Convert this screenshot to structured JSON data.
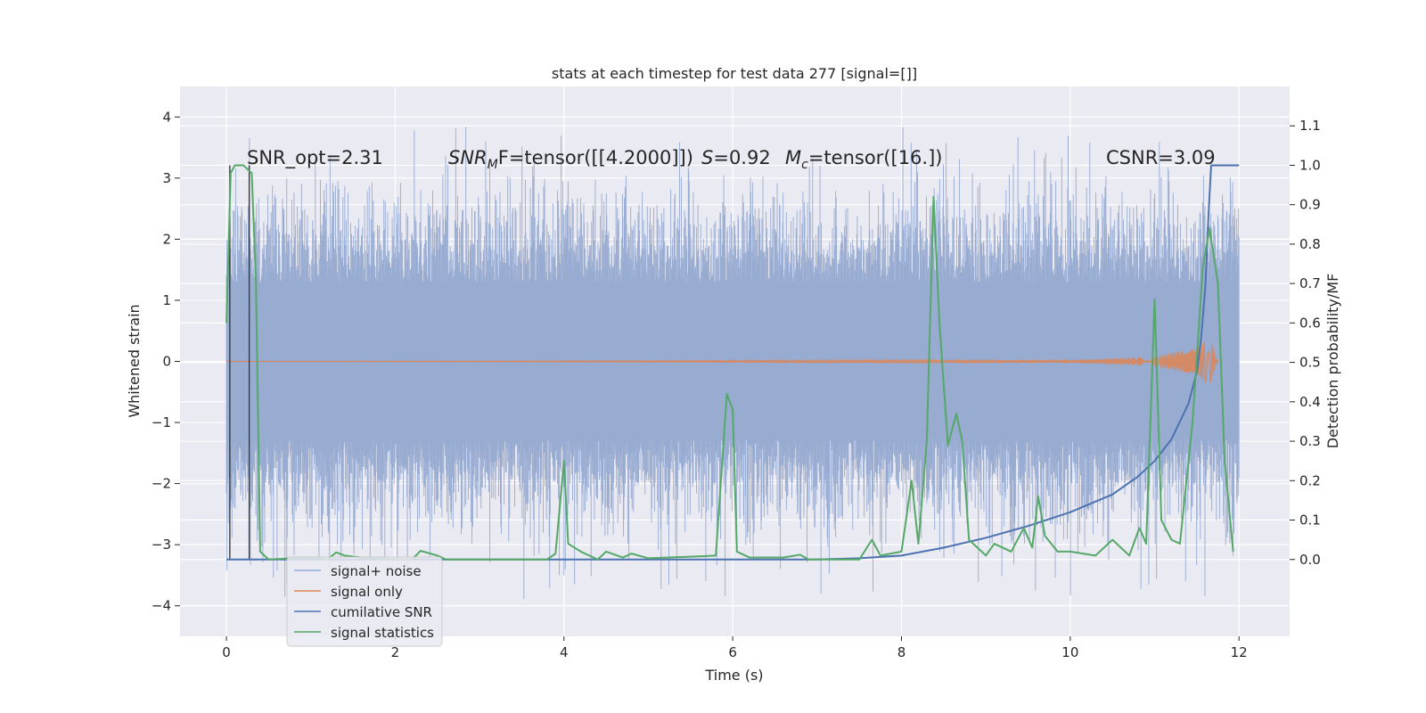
{
  "chart_data": {
    "type": "line",
    "title": "stats at each timestep for test data 277 [signal=[]]",
    "xlabel": "Time (s)",
    "ylabel": "Whitened strain",
    "y2label": "Detection probability/MF",
    "xlim": [
      -0.55,
      12.6
    ],
    "ylim": [
      -4.5,
      4.5
    ],
    "y2lim": [
      -0.195,
      1.2
    ],
    "xticks": [
      0,
      2,
      4,
      6,
      8,
      10,
      12
    ],
    "yticks": [
      -4,
      -3,
      -2,
      -1,
      0,
      1,
      2,
      3,
      4
    ],
    "y2ticks": [
      0.0,
      0.1,
      0.2,
      0.3,
      0.4,
      0.5,
      0.6,
      0.7,
      0.8,
      0.9,
      1.0,
      1.1
    ],
    "xtick_labels": [
      "0",
      "2",
      "4",
      "6",
      "8",
      "10",
      "12"
    ],
    "ytick_labels": [
      "−4",
      "−3",
      "−2",
      "−1",
      "0",
      "1",
      "2",
      "3",
      "4"
    ],
    "y2tick_labels": [
      "0.0",
      "0.1",
      "0.2",
      "0.3",
      "0.4",
      "0.5",
      "0.6",
      "0.7",
      "0.8",
      "0.9",
      "1.0",
      "1.1"
    ],
    "grid": true,
    "legend_placement": "lower-left",
    "colors": {
      "background": "#eaeaf2",
      "grid": "#ffffff",
      "noise": "#98abd1",
      "signal": "#dd8452",
      "cum_snr": "#4c72b0",
      "stats": "#55a868",
      "window": "#3a3a3a"
    },
    "annotations": {
      "snr_opt": "SNR_opt=2.31",
      "snr_mf_a": "SNR",
      "snr_mf_sub": "M",
      "snr_mf_b": "F=tensor([[4.2000]])",
      "s_a": "S",
      "s_b": "=0.92",
      "mc_a": "M",
      "mc_sub": "c",
      "mc_b": "=tensor([16.])",
      "csnr": "CSNR=3.09"
    },
    "window_lines_x": [
      0.04,
      0.27
    ],
    "series": [
      {
        "name": "signal+ noise",
        "kind": "noise",
        "x_range": [
          0,
          12
        ],
        "amplitude_core": 1.3,
        "amplitude_peak": 4.05
      },
      {
        "name": "signal only",
        "kind": "chirp",
        "x_range": [
          0,
          11.75
        ],
        "envelope": [
          [
            0,
            0.0
          ],
          [
            10,
            0.02
          ],
          [
            11,
            0.08
          ],
          [
            11.5,
            0.22
          ],
          [
            11.65,
            0.4
          ],
          [
            11.75,
            0
          ]
        ]
      },
      {
        "name": "cumilative SNR",
        "kind": "line",
        "axis": "y2",
        "points": [
          [
            0,
            0.0
          ],
          [
            7.0,
            0.0
          ],
          [
            7.5,
            0.003
          ],
          [
            8.0,
            0.01
          ],
          [
            8.5,
            0.03
          ],
          [
            9.0,
            0.055
          ],
          [
            9.5,
            0.085
          ],
          [
            10.0,
            0.12
          ],
          [
            10.5,
            0.165
          ],
          [
            10.8,
            0.21
          ],
          [
            11.0,
            0.25
          ],
          [
            11.2,
            0.305
          ],
          [
            11.4,
            0.395
          ],
          [
            11.5,
            0.475
          ],
          [
            11.55,
            0.56
          ],
          [
            11.6,
            0.69
          ],
          [
            11.64,
            0.88
          ],
          [
            11.67,
            1.0
          ],
          [
            12.0,
            1.0
          ]
        ]
      },
      {
        "name": "signal statistics",
        "kind": "line",
        "axis": "y2",
        "points": [
          [
            0.0,
            0.6
          ],
          [
            0.05,
            0.98
          ],
          [
            0.1,
            1.0
          ],
          [
            0.2,
            1.0
          ],
          [
            0.3,
            0.98
          ],
          [
            0.35,
            0.7
          ],
          [
            0.4,
            0.02
          ],
          [
            0.5,
            0.0
          ],
          [
            0.8,
            0.003
          ],
          [
            1.0,
            0.005
          ],
          [
            1.2,
            0.0
          ],
          [
            1.3,
            0.018
          ],
          [
            1.4,
            0.01
          ],
          [
            1.6,
            0.005
          ],
          [
            2.0,
            0.0
          ],
          [
            2.2,
            0.0
          ],
          [
            2.3,
            0.022
          ],
          [
            2.5,
            0.01
          ],
          [
            2.6,
            0.0
          ],
          [
            3.8,
            0.0
          ],
          [
            3.9,
            0.015
          ],
          [
            4.0,
            0.25
          ],
          [
            4.05,
            0.04
          ],
          [
            4.2,
            0.02
          ],
          [
            4.4,
            0.0
          ],
          [
            4.5,
            0.02
          ],
          [
            4.7,
            0.005
          ],
          [
            4.8,
            0.015
          ],
          [
            5.0,
            0.003
          ],
          [
            5.6,
            0.008
          ],
          [
            5.8,
            0.01
          ],
          [
            5.93,
            0.42
          ],
          [
            6.0,
            0.38
          ],
          [
            6.05,
            0.02
          ],
          [
            6.2,
            0.005
          ],
          [
            6.6,
            0.005
          ],
          [
            6.8,
            0.012
          ],
          [
            6.9,
            0.0
          ],
          [
            7.5,
            0.0
          ],
          [
            7.65,
            0.05
          ],
          [
            7.75,
            0.01
          ],
          [
            8.0,
            0.02
          ],
          [
            8.12,
            0.2
          ],
          [
            8.2,
            0.04
          ],
          [
            8.3,
            0.3
          ],
          [
            8.38,
            0.92
          ],
          [
            8.45,
            0.6
          ],
          [
            8.55,
            0.29
          ],
          [
            8.65,
            0.37
          ],
          [
            8.72,
            0.3
          ],
          [
            8.8,
            0.05
          ],
          [
            9.0,
            0.01
          ],
          [
            9.1,
            0.04
          ],
          [
            9.3,
            0.02
          ],
          [
            9.45,
            0.08
          ],
          [
            9.55,
            0.03
          ],
          [
            9.62,
            0.16
          ],
          [
            9.7,
            0.06
          ],
          [
            9.85,
            0.02
          ],
          [
            10.0,
            0.02
          ],
          [
            10.3,
            0.01
          ],
          [
            10.5,
            0.05
          ],
          [
            10.7,
            0.01
          ],
          [
            10.82,
            0.08
          ],
          [
            10.9,
            0.04
          ],
          [
            11.0,
            0.66
          ],
          [
            11.08,
            0.1
          ],
          [
            11.2,
            0.05
          ],
          [
            11.3,
            0.04
          ],
          [
            11.45,
            0.35
          ],
          [
            11.57,
            0.74
          ],
          [
            11.65,
            0.84
          ],
          [
            11.75,
            0.7
          ],
          [
            11.83,
            0.25
          ],
          [
            11.93,
            0.02
          ]
        ]
      }
    ]
  }
}
